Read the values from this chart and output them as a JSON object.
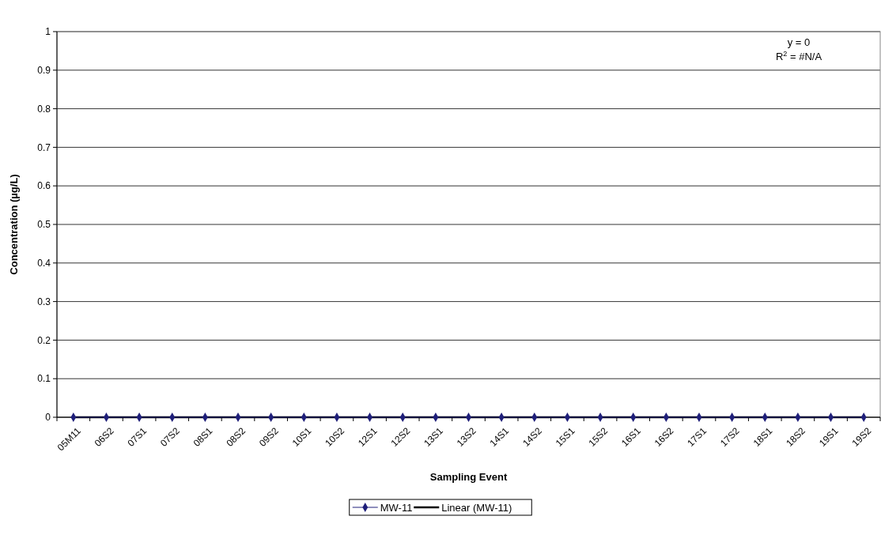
{
  "chart_data": {
    "type": "line",
    "xlabel": "Sampling Event",
    "ylabel": "Concentration (µg/L)",
    "categories": [
      "05M11",
      "06S2",
      "07S1",
      "07S2",
      "08S1",
      "08S2",
      "09S2",
      "10S1",
      "10S2",
      "12S1",
      "12S2",
      "13S1",
      "13S2",
      "14S1",
      "14S2",
      "15S1",
      "15S2",
      "16S1",
      "16S2",
      "17S1",
      "17S2",
      "18S1",
      "18S2",
      "19S1",
      "19S2"
    ],
    "series": [
      {
        "name": "MW-11",
        "color": "#1f1f7a",
        "marker": "diamond",
        "values": [
          0,
          0,
          0,
          0,
          0,
          0,
          0,
          0,
          0,
          0,
          0,
          0,
          0,
          0,
          0,
          0,
          0,
          0,
          0,
          0,
          0,
          0,
          0,
          0,
          0
        ]
      },
      {
        "name": "Linear (MW-11)",
        "color": "#000000",
        "marker": "none",
        "values": [
          0,
          0,
          0,
          0,
          0,
          0,
          0,
          0,
          0,
          0,
          0,
          0,
          0,
          0,
          0,
          0,
          0,
          0,
          0,
          0,
          0,
          0,
          0,
          0,
          0
        ]
      }
    ],
    "ylim": [
      0,
      1
    ],
    "yticks": [
      0,
      0.1,
      0.2,
      0.3,
      0.4,
      0.5,
      0.6,
      0.7,
      0.8,
      0.9,
      1
    ],
    "annotations": [
      "y = 0",
      "R$^{2}$ = #N/A"
    ],
    "grid": "y",
    "legend": "bottom"
  }
}
